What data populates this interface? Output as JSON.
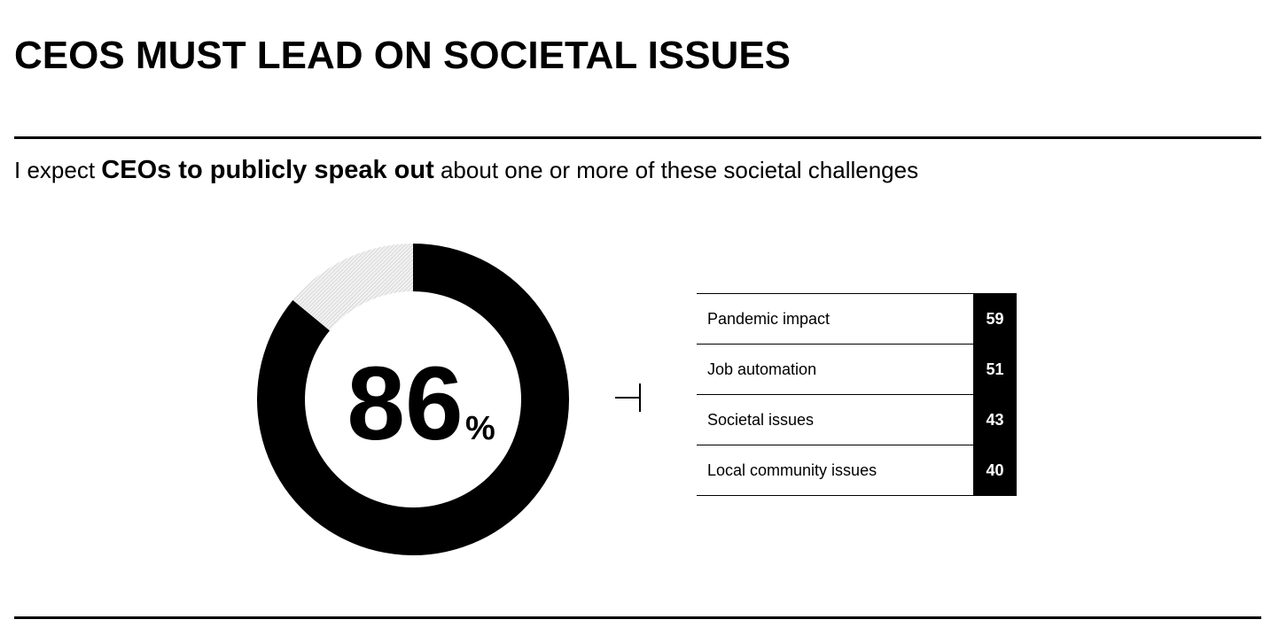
{
  "title": "CEOS MUST LEAD ON SOCIETAL ISSUES",
  "subtitle": {
    "prefix": "I expect ",
    "emphasis": "CEOs to publicly speak out",
    "suffix": " about one or more of these societal challenges"
  },
  "colors": {
    "primary": "#000000",
    "remainder_hatch": "#bdbdbd",
    "background": "#ffffff"
  },
  "chart_data": [
    {
      "type": "pie",
      "title": "",
      "values": [
        86,
        14
      ],
      "center_value": "86",
      "center_unit": "%"
    },
    {
      "type": "table",
      "rows": [
        {
          "label": "Pandemic impact",
          "value": "59"
        },
        {
          "label": "Job automation",
          "value": "51"
        },
        {
          "label": "Societal issues",
          "value": "43"
        },
        {
          "label": "Local community  issues",
          "value": "40"
        }
      ]
    }
  ]
}
